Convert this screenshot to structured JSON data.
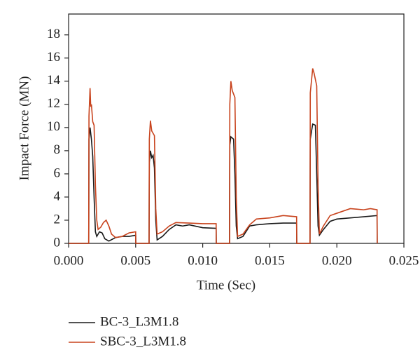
{
  "chart_data": {
    "type": "line",
    "xlabel": "Time (Sec)",
    "ylabel": "Impact Force (MN)",
    "xlim": [
      0,
      0.025
    ],
    "ylim": [
      0,
      19.8
    ],
    "xticks": [
      {
        "value": 0,
        "label": "0.000"
      },
      {
        "value": 0.005,
        "label": "0.005"
      },
      {
        "value": 0.01,
        "label": "0.010"
      },
      {
        "value": 0.015,
        "label": "0.015"
      },
      {
        "value": 0.02,
        "label": "0.020"
      },
      {
        "value": 0.025,
        "label": "0.025"
      }
    ],
    "yticks": [
      0,
      2,
      4,
      6,
      8,
      10,
      12,
      14,
      16,
      18
    ],
    "series": [
      {
        "name": "BC-3_L3M1.8",
        "color": "#1a1a1a",
        "x": [
          0,
          0.0015,
          0.00152,
          0.0016,
          0.0017,
          0.0018,
          0.0019,
          0.002,
          0.0021,
          0.0023,
          0.0025,
          0.0027,
          0.003,
          0.0035,
          0.004,
          0.0045,
          0.005,
          0.00501,
          0.006,
          0.00602,
          0.0061,
          0.0062,
          0.0063,
          0.0064,
          0.0065,
          0.0066,
          0.007,
          0.0075,
          0.008,
          0.0085,
          0.009,
          0.01,
          0.011,
          0.01101,
          0.012,
          0.01202,
          0.0121,
          0.0123,
          0.0124,
          0.0125,
          0.0126,
          0.013,
          0.0135,
          0.014,
          0.015,
          0.016,
          0.017,
          0.01701,
          0.018,
          0.01802,
          0.0182,
          0.0184,
          0.0185,
          0.0186,
          0.0187,
          0.019,
          0.0195,
          0.02,
          0.021,
          0.022,
          0.023,
          0.02301
        ],
        "values": [
          0,
          0,
          9,
          10,
          9,
          7.5,
          4,
          1,
          0.6,
          1.0,
          0.9,
          0.4,
          0.2,
          0.5,
          0.6,
          0.6,
          0.7,
          0,
          0,
          7,
          8.0,
          7.4,
          7.6,
          6.5,
          2,
          0.3,
          0.6,
          1.2,
          1.6,
          1.5,
          1.6,
          1.35,
          1.3,
          0,
          0,
          8.5,
          9.2,
          9.0,
          6,
          1.5,
          0.4,
          0.6,
          1.5,
          1.6,
          1.7,
          1.75,
          1.75,
          0,
          0,
          9,
          10.3,
          10.2,
          6,
          1.5,
          0.7,
          1.2,
          1.9,
          2.1,
          2.2,
          2.3,
          2.4,
          0
        ]
      },
      {
        "name": "SBC-3_L3M1.8",
        "color": "#c8431d",
        "x": [
          0,
          0.0015,
          0.00152,
          0.0016,
          0.00165,
          0.0017,
          0.0018,
          0.0019,
          0.002,
          0.0021,
          0.0022,
          0.0024,
          0.0026,
          0.0028,
          0.003,
          0.0032,
          0.0035,
          0.004,
          0.0045,
          0.005,
          0.00501,
          0.006,
          0.00602,
          0.0061,
          0.0062,
          0.0064,
          0.0065,
          0.0066,
          0.007,
          0.0075,
          0.008,
          0.009,
          0.01,
          0.011,
          0.01101,
          0.012,
          0.01202,
          0.0121,
          0.0122,
          0.0124,
          0.0125,
          0.0126,
          0.013,
          0.0135,
          0.014,
          0.015,
          0.016,
          0.017,
          0.01701,
          0.018,
          0.01802,
          0.0182,
          0.0183,
          0.0185,
          0.0186,
          0.0187,
          0.019,
          0.0195,
          0.02,
          0.021,
          0.022,
          0.0225,
          0.023,
          0.02301
        ],
        "values": [
          0,
          0,
          11,
          13.4,
          11.8,
          12,
          10.5,
          10.2,
          5,
          2,
          1.2,
          1.4,
          1.8,
          2.0,
          1.5,
          0.8,
          0.5,
          0.6,
          0.9,
          1.0,
          0,
          0,
          9,
          10.6,
          9.7,
          9.3,
          3,
          0.8,
          1.0,
          1.5,
          1.8,
          1.75,
          1.7,
          1.7,
          0,
          0,
          12,
          14,
          13.2,
          12.6,
          4,
          0.6,
          0.8,
          1.6,
          2.1,
          2.2,
          2.4,
          2.3,
          0,
          0,
          13,
          15.1,
          14.7,
          13.6,
          5,
          0.8,
          1.5,
          2.4,
          2.6,
          3.0,
          2.9,
          3.0,
          2.9,
          0
        ]
      }
    ]
  }
}
